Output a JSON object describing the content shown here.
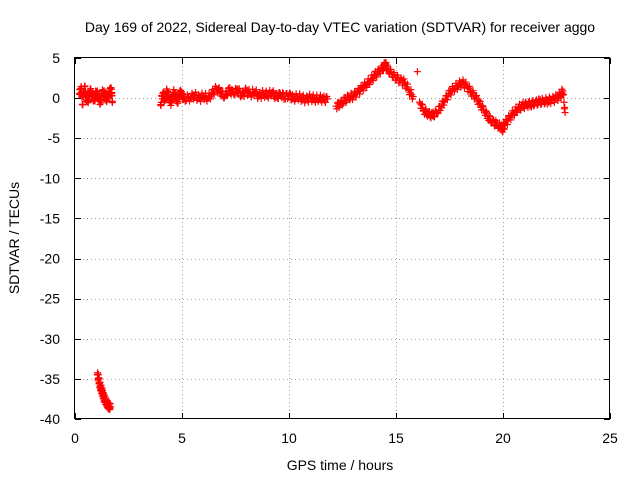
{
  "chart_data": {
    "type": "scatter",
    "title": "Day 169 of 2022, Sidereal Day-to-day VTEC variation (SDTVAR) for receiver aggo",
    "xlabel": "GPS time / hours",
    "ylabel": "SDTVAR / TECUs",
    "xlim": [
      0,
      25
    ],
    "ylim": [
      -40,
      5
    ],
    "xticks": [
      "0",
      "5",
      "10",
      "15",
      "20",
      "25"
    ],
    "yticks": [
      "5",
      "0",
      "-5",
      "-10",
      "-15",
      "-20",
      "-25",
      "-30",
      "-35",
      "-40"
    ],
    "grid": true,
    "marker": "plus",
    "color": "#ff0000",
    "series": [
      {
        "name": "SDTVAR",
        "points": [
          [
            0.2,
            0.5
          ],
          [
            0.3,
            1.2
          ],
          [
            0.35,
            -0.8
          ],
          [
            0.45,
            1.5
          ],
          [
            0.5,
            0.2
          ],
          [
            0.6,
            -0.5
          ],
          [
            0.7,
            1.0
          ],
          [
            0.8,
            0.4
          ],
          [
            0.9,
            -0.3
          ],
          [
            1.0,
            0.8
          ],
          [
            1.1,
            0.1
          ],
          [
            1.2,
            -0.6
          ],
          [
            1.3,
            0.9
          ],
          [
            1.4,
            0.3
          ],
          [
            1.5,
            -0.2
          ],
          [
            1.6,
            0.7
          ],
          [
            1.7,
            1.1
          ],
          [
            1.75,
            -0.4
          ],
          [
            1.05,
            -34.5
          ],
          [
            1.1,
            -35.0
          ],
          [
            1.15,
            -35.6
          ],
          [
            1.2,
            -36.1
          ],
          [
            1.25,
            -36.5
          ],
          [
            1.3,
            -36.9
          ],
          [
            1.35,
            -37.3
          ],
          [
            1.4,
            -37.6
          ],
          [
            1.45,
            -37.9
          ],
          [
            1.5,
            -38.1
          ],
          [
            1.55,
            -38.3
          ],
          [
            1.6,
            -38.4
          ],
          [
            1.65,
            -38.5
          ],
          [
            4.0,
            -0.8
          ],
          [
            4.1,
            0.6
          ],
          [
            4.2,
            -0.3
          ],
          [
            4.3,
            0.9
          ],
          [
            4.4,
            0.0
          ],
          [
            4.5,
            -0.6
          ],
          [
            4.6,
            0.7
          ],
          [
            4.7,
            0.2
          ],
          [
            4.8,
            -0.4
          ],
          [
            4.9,
            0.8
          ],
          [
            5.0,
            0.3
          ],
          [
            5.1,
            -0.1
          ],
          [
            5.4,
            0.1
          ],
          [
            5.6,
            0.4
          ],
          [
            5.8,
            -0.1
          ],
          [
            6.0,
            0.3
          ],
          [
            6.2,
            0.0
          ],
          [
            6.4,
            0.5
          ],
          [
            6.6,
            1.2
          ],
          [
            6.8,
            0.8
          ],
          [
            7.0,
            0.2
          ],
          [
            7.2,
            1.0
          ],
          [
            7.4,
            0.6
          ],
          [
            7.6,
            1.1
          ],
          [
            7.8,
            0.3
          ],
          [
            8.0,
            0.9
          ],
          [
            8.2,
            0.5
          ],
          [
            8.4,
            0.8
          ],
          [
            8.6,
            0.2
          ],
          [
            8.8,
            0.6
          ],
          [
            9.0,
            0.4
          ],
          [
            9.2,
            0.7
          ],
          [
            9.4,
            0.1
          ],
          [
            9.6,
            0.5
          ],
          [
            9.8,
            0.2
          ],
          [
            10.0,
            0.4
          ],
          [
            10.2,
            -0.1
          ],
          [
            10.4,
            0.2
          ],
          [
            10.6,
            0.0
          ],
          [
            10.8,
            -0.2
          ],
          [
            11.0,
            0.1
          ],
          [
            11.2,
            -0.1
          ],
          [
            11.4,
            0.0
          ],
          [
            11.6,
            -0.2
          ],
          [
            11.8,
            -0.1
          ],
          [
            12.2,
            -1.0
          ],
          [
            12.4,
            -0.7
          ],
          [
            12.6,
            -0.3
          ],
          [
            12.8,
            0.1
          ],
          [
            13.0,
            0.3
          ],
          [
            13.2,
            0.7
          ],
          [
            13.4,
            1.2
          ],
          [
            13.6,
            1.7
          ],
          [
            13.8,
            2.2
          ],
          [
            14.0,
            2.8
          ],
          [
            14.2,
            3.3
          ],
          [
            14.4,
            3.8
          ],
          [
            14.5,
            4.3
          ],
          [
            14.6,
            3.6
          ],
          [
            14.8,
            3.0
          ],
          [
            15.0,
            2.6
          ],
          [
            15.2,
            2.2
          ],
          [
            15.4,
            1.9
          ],
          [
            15.6,
            1.0
          ],
          [
            15.8,
            0.2
          ],
          [
            16.0,
            3.3
          ],
          [
            16.1,
            -0.5
          ],
          [
            16.3,
            -1.5
          ],
          [
            16.5,
            -2.0
          ],
          [
            16.7,
            -2.2
          ],
          [
            16.9,
            -1.8
          ],
          [
            17.1,
            -1.0
          ],
          [
            17.3,
            -0.2
          ],
          [
            17.5,
            0.6
          ],
          [
            17.7,
            1.2
          ],
          [
            17.9,
            1.6
          ],
          [
            18.1,
            1.9
          ],
          [
            18.3,
            1.5
          ],
          [
            18.5,
            0.8
          ],
          [
            18.7,
            0.2
          ],
          [
            18.9,
            -0.7
          ],
          [
            19.1,
            -1.5
          ],
          [
            19.3,
            -2.3
          ],
          [
            19.5,
            -2.9
          ],
          [
            19.7,
            -3.3
          ],
          [
            19.9,
            -3.6
          ],
          [
            20.0,
            -3.8
          ],
          [
            20.1,
            -3.2
          ],
          [
            20.3,
            -2.5
          ],
          [
            20.5,
            -1.8
          ],
          [
            20.7,
            -1.3
          ],
          [
            20.9,
            -1.0
          ],
          [
            21.1,
            -0.8
          ],
          [
            21.3,
            -0.7
          ],
          [
            21.5,
            -0.6
          ],
          [
            21.7,
            -0.5
          ],
          [
            21.9,
            -0.4
          ],
          [
            22.1,
            -0.3
          ],
          [
            22.3,
            -0.2
          ],
          [
            22.5,
            0.0
          ],
          [
            22.7,
            0.4
          ],
          [
            22.8,
            0.9
          ],
          [
            22.9,
            -1.8
          ]
        ]
      }
    ]
  }
}
